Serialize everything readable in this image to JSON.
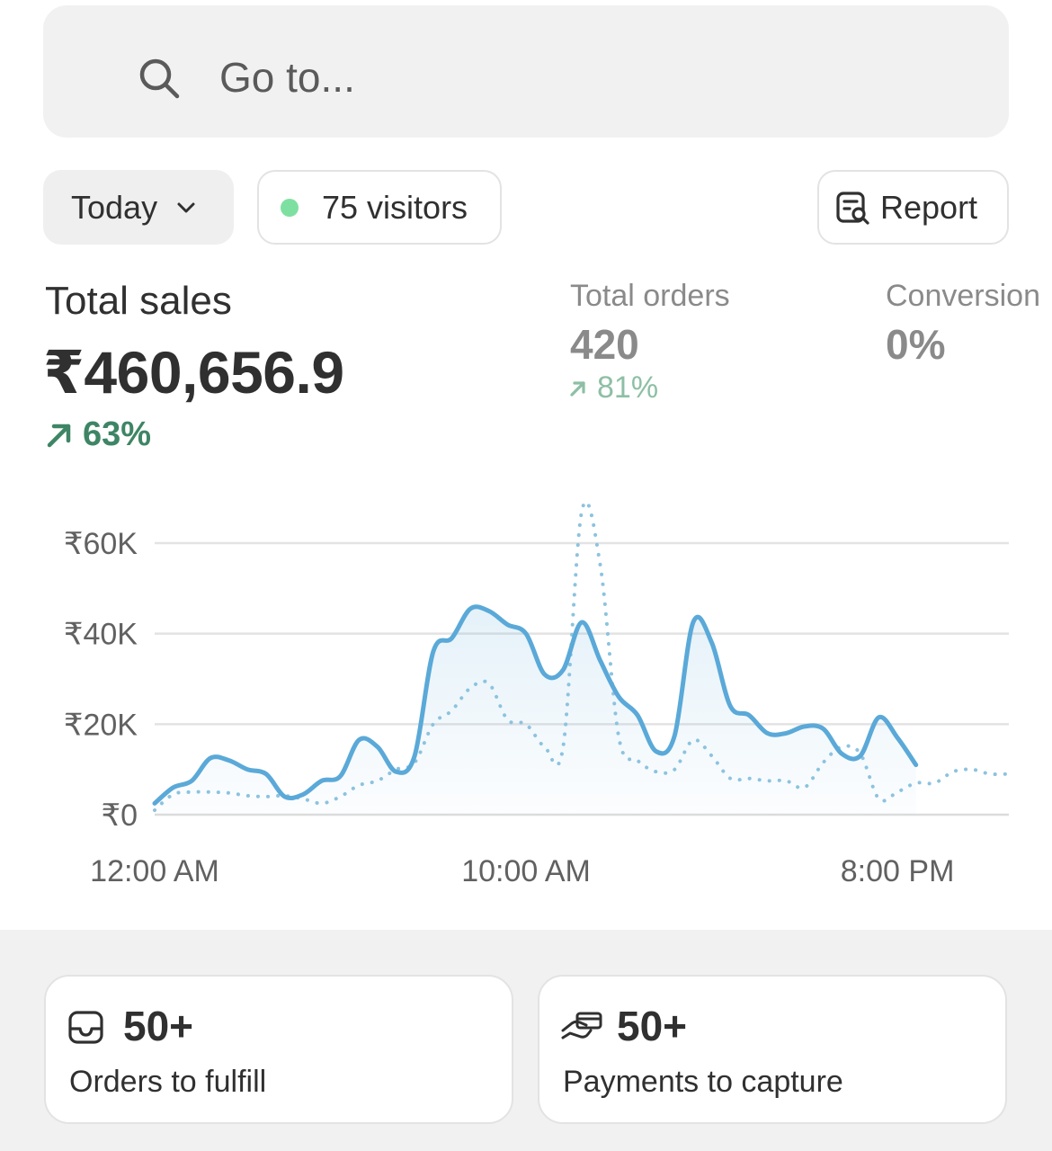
{
  "search": {
    "placeholder": "Go to..."
  },
  "filters": {
    "date_range": "Today",
    "visitors": "75 visitors",
    "report_label": "Report"
  },
  "metrics": {
    "total_sales": {
      "label": "Total sales",
      "value": "₹460,656.9",
      "change": "63%"
    },
    "total_orders": {
      "label": "Total orders",
      "value": "420",
      "change": "81%"
    },
    "conversion": {
      "label": "Conversion",
      "value": "0%"
    }
  },
  "colors": {
    "accent_line": "#5aa9d8",
    "comparison_line": "#8cc3df",
    "positive_trend": "#3e8565",
    "live_dot": "#7ee0a0"
  },
  "chart_data": {
    "type": "line",
    "y_ticks": [
      "₹60K",
      "₹40K",
      "₹20K",
      "₹0"
    ],
    "x_ticks": [
      "12:00 AM",
      "10:00 AM",
      "8:00 PM"
    ],
    "ylim": [
      0,
      60000
    ],
    "grid": true,
    "x": [
      0,
      0.5,
      1,
      1.5,
      2,
      2.5,
      3,
      3.5,
      4,
      4.5,
      5,
      5.5,
      6,
      6.5,
      7,
      7.5,
      8,
      8.5,
      9,
      9.5,
      10,
      10.5,
      11,
      11.5,
      12,
      12.5,
      13,
      13.5,
      14,
      14.5,
      15,
      15.5,
      16,
      16.5,
      17,
      17.5,
      18,
      18.5,
      19,
      19.5,
      20,
      20.5,
      21,
      21.5,
      22,
      22.5,
      23
    ],
    "series": [
      {
        "values": [
          2500,
          6000,
          7500,
          12500,
          12000,
          10000,
          9000,
          4000,
          4500,
          7500,
          8500,
          16500,
          15000,
          9500,
          13000,
          36000,
          39000,
          45500,
          45000,
          42000,
          40000,
          31000,
          32000,
          42500,
          34000,
          26000,
          22000,
          14000,
          17500,
          42500,
          38000,
          24000,
          22000,
          18000,
          18000,
          19500,
          19000,
          13500,
          13000,
          21500,
          17000,
          11000,
          null,
          null,
          null,
          null,
          null
        ]
      },
      {
        "values": [
          1000,
          4500,
          5000,
          5000,
          4800,
          4200,
          4000,
          4200,
          3500,
          2500,
          4000,
          6500,
          7500,
          10000,
          11500,
          20000,
          23000,
          28000,
          29000,
          21000,
          20000,
          15000,
          15000,
          67000,
          55000,
          17000,
          12000,
          9500,
          10000,
          16500,
          13000,
          8000,
          8000,
          7500,
          7500,
          6000,
          11500,
          15000,
          13500,
          3500,
          5000,
          7000,
          7000,
          9500,
          10000,
          9000,
          9000
        ]
      }
    ]
  },
  "tasks": [
    {
      "count": "50+",
      "label": "Orders to fulfill",
      "icon": "inbox-icon"
    },
    {
      "count": "50+",
      "label": "Payments to capture",
      "icon": "hand-card-icon"
    }
  ]
}
